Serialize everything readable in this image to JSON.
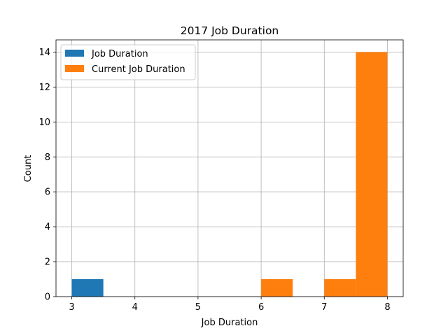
{
  "chart_data": {
    "type": "bar",
    "title": "2017 Job Duration",
    "xlabel": "Job Duration",
    "ylabel": "Count",
    "xlim": [
      2.75,
      8.25
    ],
    "ylim": [
      0,
      14.7
    ],
    "xticks": [
      3,
      4,
      5,
      6,
      7,
      8
    ],
    "yticks": [
      0,
      2,
      4,
      6,
      8,
      10,
      12,
      14
    ],
    "grid": true,
    "legend_position": "upper left",
    "series": [
      {
        "name": "Job Duration",
        "color": "#1f77b4",
        "bins": [
          {
            "x0": 3.0,
            "x1": 3.5,
            "count": 1
          }
        ]
      },
      {
        "name": "Current Job Duration",
        "color": "#ff7f0e",
        "bins": [
          {
            "x0": 6.0,
            "x1": 6.5,
            "count": 1
          },
          {
            "x0": 7.0,
            "x1": 7.5,
            "count": 1
          },
          {
            "x0": 7.5,
            "x1": 8.0,
            "count": 14
          }
        ]
      }
    ]
  }
}
